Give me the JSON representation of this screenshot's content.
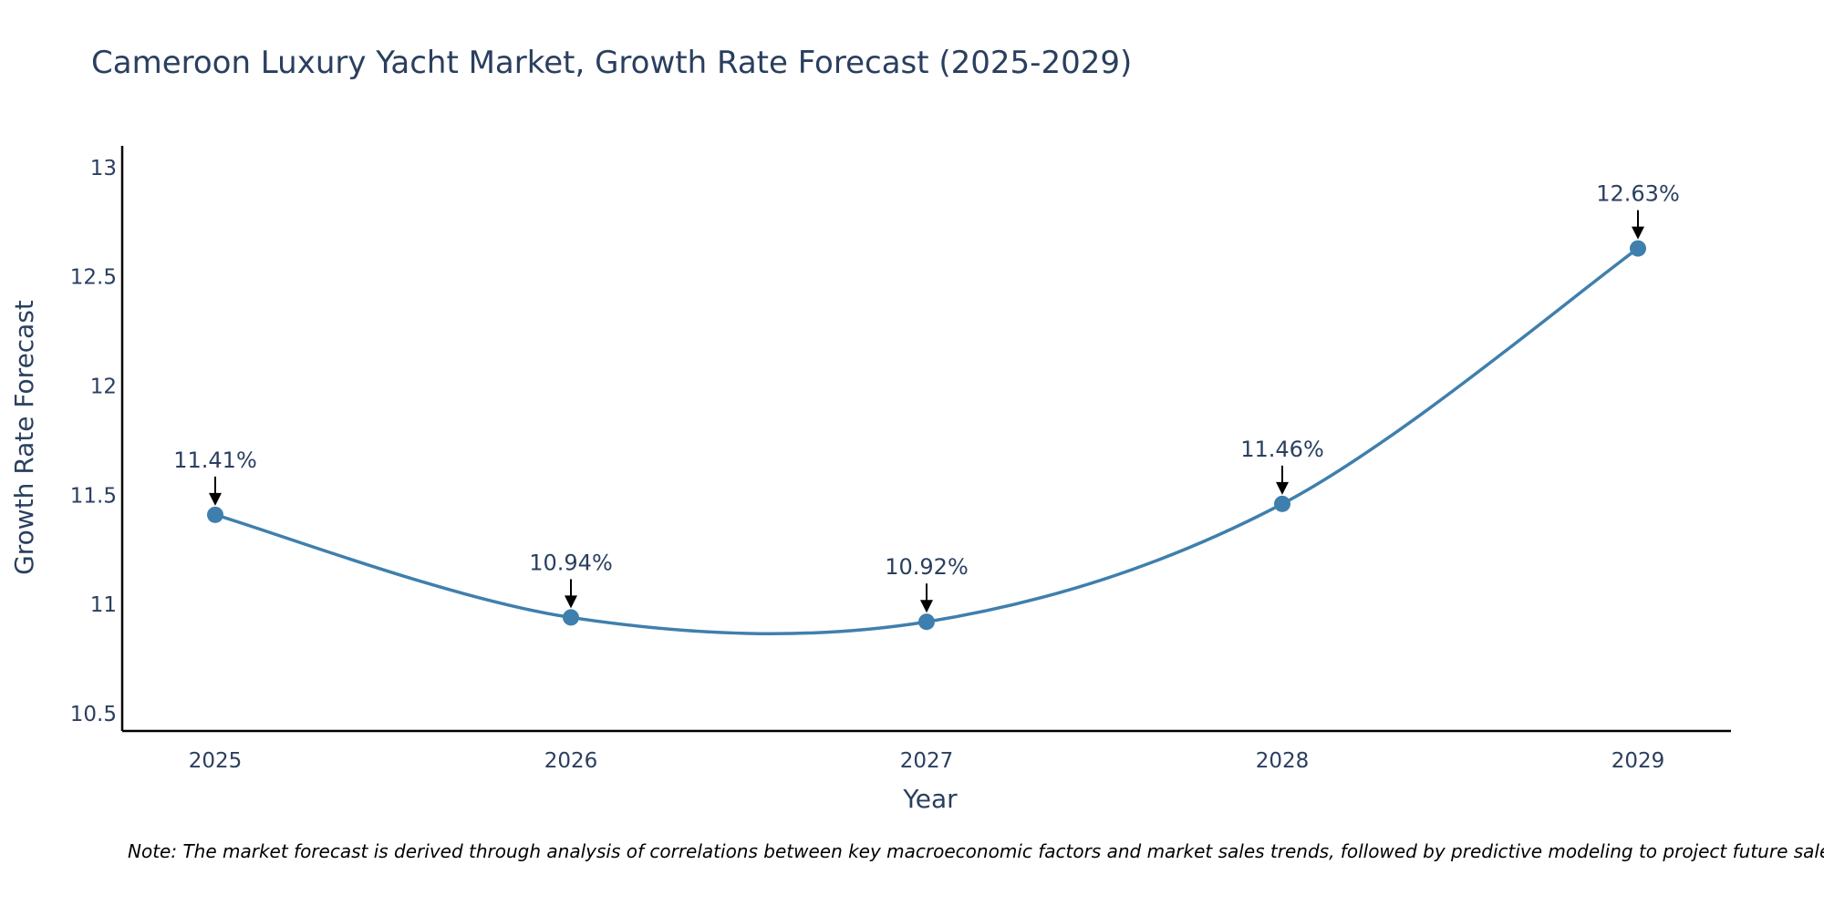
{
  "chart_data": {
    "type": "line",
    "title": "Cameroon Luxury Yacht Market, Growth Rate Forecast (2025-2029)",
    "xlabel": "Year",
    "ylabel": "Growth Rate Forecast",
    "categories": [
      "2025",
      "2026",
      "2027",
      "2028",
      "2029"
    ],
    "series": [
      {
        "name": "Growth Rate Forecast",
        "values": [
          11.41,
          10.94,
          10.92,
          11.46,
          12.63
        ],
        "labels": [
          "11.41%",
          "10.94%",
          "10.92%",
          "11.46%",
          "12.63%"
        ]
      }
    ],
    "ylim": [
      10.42,
      13.1
    ],
    "yticks": [
      10.5,
      11,
      11.5,
      12,
      12.5,
      13
    ],
    "ytick_labels": [
      "10.5",
      "11",
      "11.5",
      "12",
      "12.5",
      "13"
    ],
    "grid": false,
    "line_shape": "spline",
    "note": "Note: The market forecast is derived through analysis of correlations between key macroeconomic factors and market sales trends, followed by predictive modeling to project future sales."
  },
  "colors": {
    "line": "#3f7fad",
    "marker": "#3f7fad",
    "title_text": "#2a3f5f",
    "axis_text": "#2a3f5f",
    "axis_line": "#000000",
    "annotation_arrow": "#000000",
    "note_text": "#000000"
  }
}
